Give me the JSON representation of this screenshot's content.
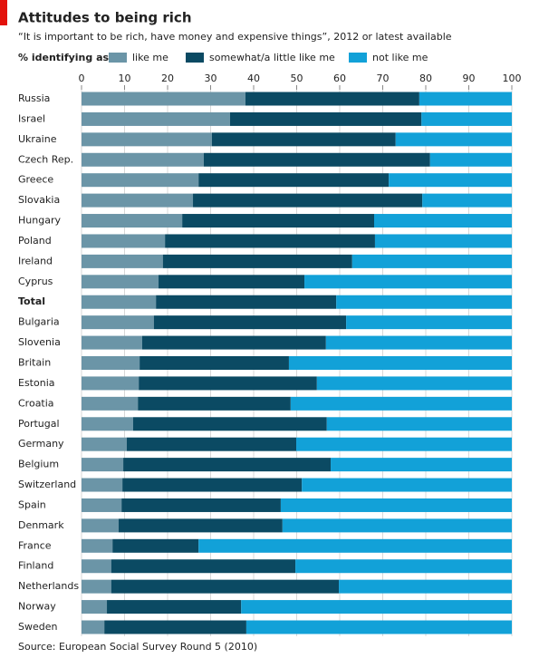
{
  "chart_data": {
    "type": "stacked_barh",
    "title": "Attitudes to being rich",
    "subtitle": "“It is important to be rich, have money and expensive things”, 2012 or latest available",
    "legend_title": "% identifying as:",
    "source": "Source: European Social Survey Round 5 (2010)",
    "categories": [
      "Russia",
      "Israel",
      "Ukraine",
      "Czech Rep.",
      "Greece",
      "Slovakia",
      "Hungary",
      "Poland",
      "Ireland",
      "Cyprus",
      "Total",
      "Bulgaria",
      "Slovenia",
      "Britain",
      "Estonia",
      "Croatia",
      "Portugal",
      "Germany",
      "Belgium",
      "Switzerland",
      "Spain",
      "Denmark",
      "France",
      "Finland",
      "Netherlands",
      "Norway",
      "Sweden"
    ],
    "series": [
      {
        "name": "like me",
        "color": "#6b95a7",
        "values": [
          38.1,
          34.5,
          30.3,
          28.4,
          27.2,
          25.9,
          23.4,
          19.4,
          18.9,
          17.9,
          17.3,
          16.8,
          14.1,
          13.5,
          13.3,
          13.1,
          12,
          10.5,
          9.7,
          9.5,
          9.3,
          8.6,
          7.2,
          6.9,
          6.9,
          5.9,
          5.3
        ]
      },
      {
        "name": "somewhat/a little like me",
        "color": "#0b4a63",
        "values": [
          40.4,
          44.5,
          42.7,
          52.6,
          44.2,
          53.3,
          44.6,
          48.8,
          44,
          33.9,
          41.9,
          44.7,
          42.7,
          34.7,
          41.4,
          35.5,
          45,
          39.4,
          48.2,
          41.7,
          37,
          38.1,
          20,
          42.8,
          52.9,
          31.2,
          33
        ]
      },
      {
        "name": "not like me",
        "color": "#12a1d8",
        "values": [
          21.5,
          21,
          27,
          19,
          28.6,
          20.8,
          32,
          31.8,
          37.1,
          48.2,
          40.8,
          38.5,
          43.2,
          51.8,
          45.3,
          51.4,
          43,
          50.1,
          42.1,
          48.8,
          53.7,
          53.3,
          72.8,
          50.3,
          40.2,
          62.9,
          61.7
        ]
      }
    ],
    "xlim": [
      0,
      100
    ],
    "xticks": [
      0,
      10,
      20,
      30,
      40,
      50,
      60,
      70,
      80,
      90,
      100
    ],
    "grid": true
  }
}
